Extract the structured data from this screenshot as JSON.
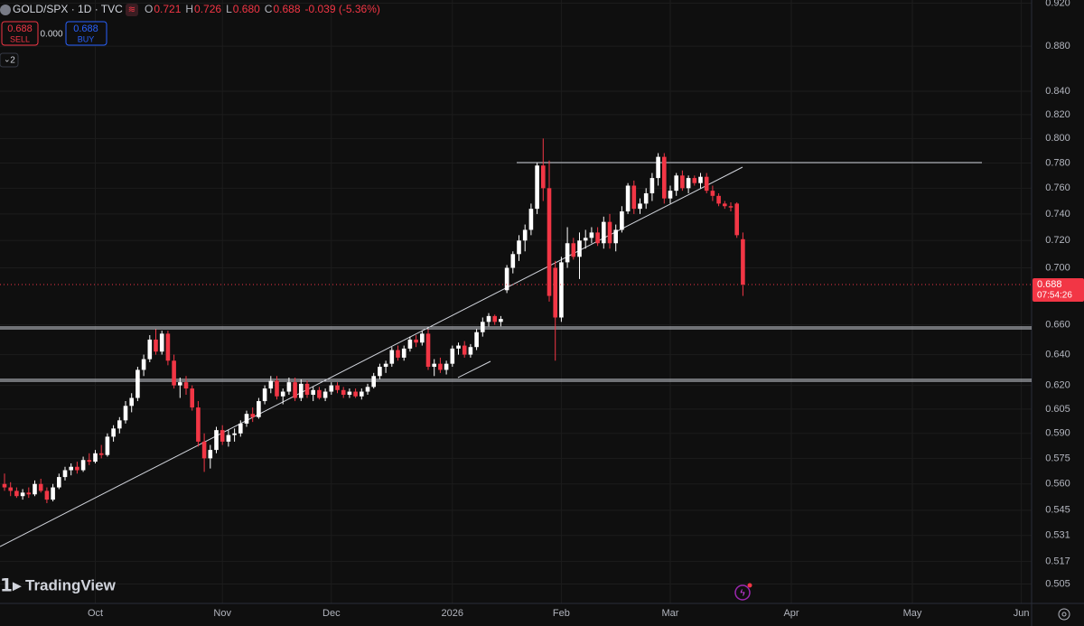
{
  "header": {
    "symbol": "GOLD/SPX · 1D · TVC",
    "ohlc": [
      {
        "key": "O",
        "value": "0.721"
      },
      {
        "key": "H",
        "value": "0.726"
      },
      {
        "key": "L",
        "value": "0.680"
      },
      {
        "key": "C",
        "value": "0.688"
      }
    ],
    "change": "-0.039 (-5.36%)",
    "sell_price": "0.688",
    "sell_label": "SELL",
    "spread": "0.000",
    "buy_price": "0.688",
    "buy_label": "BUY",
    "indicator_count": "2",
    "brand": "TradingView"
  },
  "chart_data": {
    "type": "candlestick",
    "log_scale": true,
    "grid": true,
    "up_color": "#ffffff",
    "down_color": "#f23645",
    "last_price": 0.688,
    "countdown": "07:54:26",
    "ylim": [
      0.495,
      0.923
    ],
    "yticks": [
      {
        "value": 0.92,
        "label": "0.920"
      },
      {
        "value": 0.88,
        "label": "0.880"
      },
      {
        "value": 0.84,
        "label": "0.840"
      },
      {
        "value": 0.82,
        "label": "0.820"
      },
      {
        "value": 0.8,
        "label": "0.800"
      },
      {
        "value": 0.78,
        "label": "0.780"
      },
      {
        "value": 0.76,
        "label": "0.760"
      },
      {
        "value": 0.74,
        "label": "0.740"
      },
      {
        "value": 0.72,
        "label": "0.720"
      },
      {
        "value": 0.7,
        "label": "0.700"
      },
      {
        "value": 0.66,
        "label": "0.660"
      },
      {
        "value": 0.64,
        "label": "0.640"
      },
      {
        "value": 0.62,
        "label": "0.620"
      },
      0.605,
      {
        "value": 0.59,
        "label": "0.590"
      },
      0.575,
      {
        "value": 0.56,
        "label": "0.560"
      },
      0.545,
      0.531,
      0.517,
      0.505
    ],
    "categories": [
      null,
      null,
      null,
      null,
      null,
      null,
      null,
      null,
      null,
      null,
      null,
      null,
      null,
      null,
      null,
      "Oct",
      null,
      null,
      null,
      null,
      null,
      null,
      null,
      null,
      null,
      null,
      null,
      null,
      null,
      null,
      null,
      null,
      null,
      null,
      null,
      null,
      "Nov",
      null,
      null,
      null,
      null,
      null,
      null,
      null,
      null,
      null,
      null,
      null,
      null,
      null,
      null,
      null,
      null,
      null,
      "Dec",
      null,
      null,
      null,
      null,
      null,
      null,
      null,
      null,
      null,
      null,
      null,
      null,
      null,
      null,
      null,
      null,
      null,
      null,
      null,
      "2026",
      null,
      null,
      null,
      null,
      null,
      null,
      null,
      null,
      null,
      null,
      null,
      null,
      null,
      null,
      null,
      null,
      null,
      "Feb",
      null,
      null,
      null,
      null,
      null,
      null,
      null,
      null,
      null,
      null,
      null,
      null,
      null,
      null,
      null,
      null,
      null,
      "Mar",
      null,
      null,
      null,
      null,
      null,
      null,
      null,
      null,
      null,
      null,
      null,
      null,
      null,
      null,
      null,
      null,
      null,
      null,
      null,
      "Apr",
      null,
      null,
      null,
      null,
      null,
      null,
      null,
      null,
      null,
      null,
      null,
      null,
      null,
      null,
      null,
      null,
      null,
      null,
      null,
      "May",
      null,
      null,
      null,
      null,
      null,
      null,
      null,
      null,
      null,
      null,
      null,
      null,
      null,
      null,
      null,
      null,
      null,
      "Jun",
      null
    ],
    "open": [
      0.56,
      0.558,
      0.556,
      0.553,
      0.555,
      0.554,
      0.56,
      0.556,
      0.551,
      0.558,
      0.564,
      0.568,
      0.57,
      0.568,
      0.574,
      0.573,
      0.578,
      0.577,
      0.588,
      0.593,
      0.598,
      0.607,
      0.612,
      0.63,
      0.637,
      0.65,
      0.642,
      0.654,
      0.636,
      0.62,
      0.622,
      0.618,
      0.606,
      0.585,
      0.575,
      0.58,
      0.592,
      0.585,
      0.589,
      0.59,
      0.596,
      0.602,
      0.6,
      0.61,
      0.618,
      0.623,
      0.613,
      0.616,
      0.622,
      0.612,
      0.621,
      0.614,
      0.617,
      0.612,
      0.616,
      0.62,
      0.617,
      0.614,
      0.616,
      0.613,
      0.616,
      0.619,
      0.626,
      0.632,
      0.634,
      0.643,
      0.638,
      0.644,
      0.65,
      0.648,
      0.654,
      0.632,
      0.634,
      0.63,
      0.634,
      0.644,
      0.646,
      0.64,
      0.645,
      0.655,
      0.662,
      0.666,
      0.662,
      0.684,
      0.7,
      0.71,
      0.72,
      0.728,
      0.744,
      0.778,
      0.76,
      0.7,
      0.665,
      0.704,
      0.718,
      0.708,
      0.72,
      0.722,
      0.726,
      0.718,
      0.734,
      0.718,
      0.728,
      0.742,
      0.762,
      0.744,
      0.748,
      0.756,
      0.768,
      0.785,
      0.752,
      0.758,
      0.77,
      0.76,
      0.768,
      0.764,
      0.769,
      0.758,
      0.754,
      0.748,
      0.746,
      0.748,
      0.721,
      null,
      null,
      null,
      null,
      null,
      null,
      null,
      null,
      null,
      null,
      null,
      null,
      null,
      null,
      null,
      null,
      null,
      null,
      null,
      null,
      null,
      null,
      null,
      null,
      null,
      null,
      null,
      null,
      null,
      null,
      null,
      null,
      null,
      null,
      null,
      null,
      null,
      null,
      null,
      null,
      null,
      null,
      null,
      null,
      null,
      null,
      null
    ],
    "high": [
      0.566,
      0.561,
      0.558,
      0.557,
      0.558,
      0.562,
      0.563,
      0.558,
      0.56,
      0.566,
      0.57,
      0.572,
      0.573,
      0.576,
      0.578,
      0.58,
      0.583,
      0.59,
      0.595,
      0.6,
      0.61,
      0.615,
      0.632,
      0.64,
      0.653,
      0.657,
      0.656,
      0.656,
      0.64,
      0.625,
      0.626,
      0.62,
      0.61,
      0.59,
      0.583,
      0.594,
      0.595,
      0.592,
      0.593,
      0.598,
      0.604,
      0.606,
      0.612,
      0.62,
      0.626,
      0.626,
      0.618,
      0.625,
      0.625,
      0.624,
      0.623,
      0.619,
      0.619,
      0.618,
      0.622,
      0.622,
      0.619,
      0.618,
      0.618,
      0.618,
      0.621,
      0.628,
      0.634,
      0.636,
      0.645,
      0.646,
      0.646,
      0.652,
      0.653,
      0.656,
      0.657,
      0.637,
      0.638,
      0.636,
      0.646,
      0.648,
      0.649,
      0.647,
      0.657,
      0.665,
      0.668,
      0.667,
      0.666,
      0.702,
      0.712,
      0.724,
      0.732,
      0.748,
      0.78,
      0.8,
      0.782,
      0.705,
      0.708,
      0.73,
      0.722,
      0.726,
      0.728,
      0.73,
      0.73,
      0.738,
      0.74,
      0.732,
      0.746,
      0.764,
      0.766,
      0.752,
      0.76,
      0.772,
      0.788,
      0.788,
      0.762,
      0.772,
      0.774,
      0.77,
      0.77,
      0.772,
      0.772,
      0.762,
      0.756,
      0.75,
      0.749,
      0.749,
      0.726,
      null,
      null,
      null,
      null,
      null,
      null,
      null,
      null,
      null,
      null,
      null,
      null,
      null,
      null,
      null,
      null,
      null,
      null,
      null,
      null,
      null,
      null,
      null,
      null,
      null,
      null,
      null,
      null,
      null,
      null,
      null,
      null,
      null,
      null,
      null,
      null,
      null,
      null,
      null,
      null,
      null,
      null,
      null,
      null,
      null,
      null,
      null
    ],
    "low": [
      0.556,
      0.553,
      0.552,
      0.551,
      0.552,
      0.553,
      0.555,
      0.549,
      0.55,
      0.557,
      0.562,
      0.565,
      0.566,
      0.567,
      0.571,
      0.572,
      0.575,
      0.576,
      0.585,
      0.59,
      0.596,
      0.603,
      0.61,
      0.626,
      0.635,
      0.64,
      0.64,
      0.633,
      0.618,
      0.612,
      0.614,
      0.604,
      0.582,
      0.567,
      0.569,
      0.578,
      0.583,
      0.582,
      0.585,
      0.588,
      0.594,
      0.597,
      0.599,
      0.608,
      0.615,
      0.611,
      0.608,
      0.614,
      0.61,
      0.61,
      0.612,
      0.61,
      0.611,
      0.61,
      0.614,
      0.615,
      0.612,
      0.612,
      0.612,
      0.611,
      0.614,
      0.618,
      0.624,
      0.628,
      0.632,
      0.636,
      0.636,
      0.642,
      0.645,
      0.646,
      0.63,
      0.626,
      0.628,
      0.627,
      0.632,
      0.64,
      0.638,
      0.638,
      0.643,
      0.652,
      0.659,
      0.66,
      0.659,
      0.682,
      0.696,
      0.705,
      0.712,
      0.724,
      0.74,
      0.75,
      0.676,
      0.636,
      0.662,
      0.7,
      0.706,
      0.692,
      0.714,
      0.718,
      0.716,
      0.714,
      0.714,
      0.712,
      0.726,
      0.74,
      0.74,
      0.74,
      0.744,
      0.75,
      0.762,
      0.748,
      0.748,
      0.754,
      0.758,
      0.756,
      0.762,
      0.76,
      0.756,
      0.75,
      0.746,
      0.744,
      0.742,
      0.722,
      0.68,
      null,
      null,
      null,
      null,
      null,
      null,
      null,
      null,
      null,
      null,
      null,
      null,
      null,
      null,
      null,
      null,
      null,
      null,
      null,
      null,
      null,
      null,
      null,
      null,
      null,
      null,
      null,
      null,
      null,
      null,
      null,
      null,
      null,
      null,
      null,
      null,
      null,
      null,
      null,
      null,
      null,
      null,
      null,
      null,
      null,
      null,
      null
    ],
    "close": [
      0.558,
      0.556,
      0.553,
      0.555,
      0.554,
      0.56,
      0.556,
      0.551,
      0.558,
      0.564,
      0.568,
      0.57,
      0.568,
      0.574,
      0.573,
      0.578,
      0.577,
      0.588,
      0.593,
      0.598,
      0.607,
      0.612,
      0.63,
      0.637,
      0.65,
      0.642,
      0.654,
      0.636,
      0.62,
      0.622,
      0.618,
      0.606,
      0.585,
      0.575,
      0.58,
      0.592,
      0.585,
      0.589,
      0.59,
      0.596,
      0.602,
      0.6,
      0.61,
      0.618,
      0.623,
      0.613,
      0.616,
      0.622,
      0.612,
      0.621,
      0.614,
      0.617,
      0.612,
      0.616,
      0.62,
      0.617,
      0.614,
      0.616,
      0.613,
      0.616,
      0.619,
      0.626,
      0.632,
      0.634,
      0.643,
      0.638,
      0.644,
      0.65,
      0.648,
      0.654,
      0.632,
      0.634,
      0.63,
      0.634,
      0.644,
      0.646,
      0.64,
      0.645,
      0.655,
      0.662,
      0.666,
      0.662,
      0.664,
      0.7,
      0.71,
      0.72,
      0.728,
      0.744,
      0.778,
      0.76,
      0.68,
      0.665,
      0.704,
      0.718,
      0.708,
      0.72,
      0.722,
      0.726,
      0.718,
      0.734,
      0.718,
      0.728,
      0.742,
      0.762,
      0.744,
      0.748,
      0.756,
      0.768,
      0.785,
      0.752,
      0.758,
      0.77,
      0.76,
      0.768,
      0.764,
      0.769,
      0.758,
      0.754,
      0.748,
      0.746,
      0.745,
      0.724,
      0.688,
      null,
      null,
      null,
      null,
      null,
      null,
      null,
      null,
      null,
      null,
      null,
      null,
      null,
      null,
      null,
      null,
      null,
      null,
      null,
      null,
      null,
      null,
      null,
      null,
      null,
      null,
      null,
      null,
      null,
      null,
      null,
      null,
      null,
      null,
      null,
      null,
      null,
      null,
      null,
      null,
      null,
      null,
      null,
      null,
      null,
      null,
      null
    ]
  }
}
